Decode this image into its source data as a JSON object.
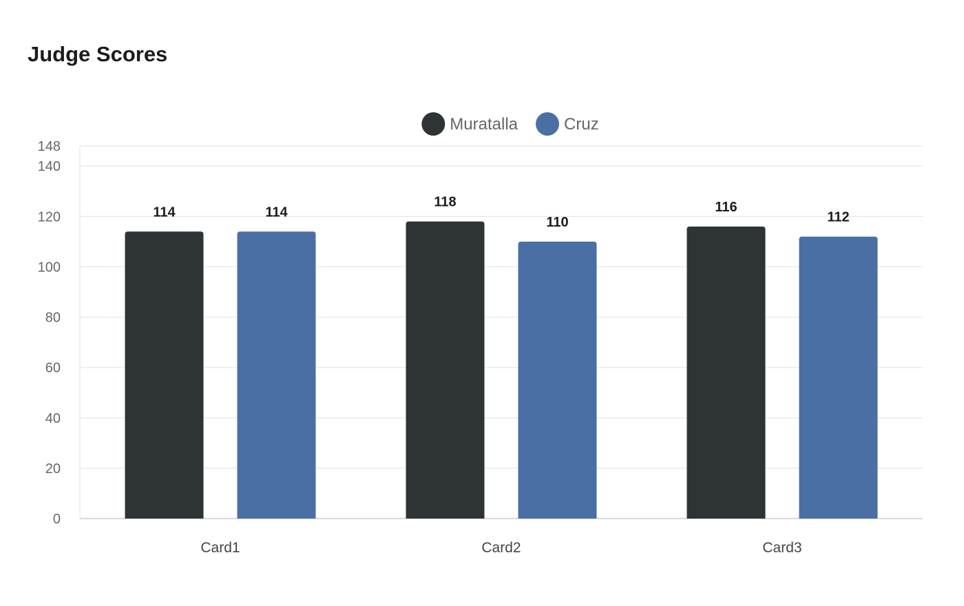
{
  "title": "Judge Scores",
  "chart_data": {
    "type": "bar",
    "categories": [
      "Card1",
      "Card2",
      "Card3"
    ],
    "series": [
      {
        "name": "Muratalla",
        "color": "#2e3436",
        "values": [
          114,
          118,
          116
        ]
      },
      {
        "name": "Cruz",
        "color": "#4a6fa5",
        "values": [
          114,
          110,
          112
        ]
      }
    ],
    "ylim": [
      0,
      148
    ],
    "yticks": [
      0,
      20,
      40,
      60,
      80,
      100,
      120,
      140,
      148
    ],
    "grid": true,
    "legend_position": "top-center",
    "data_labels": true
  }
}
